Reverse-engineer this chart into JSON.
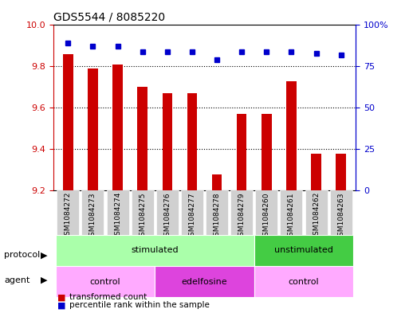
{
  "title": "GDS5544 / 8085220",
  "samples": [
    "GSM1084272",
    "GSM1084273",
    "GSM1084274",
    "GSM1084275",
    "GSM1084276",
    "GSM1084277",
    "GSM1084278",
    "GSM1084279",
    "GSM1084260",
    "GSM1084261",
    "GSM1084262",
    "GSM1084263"
  ],
  "transformed_count": [
    9.86,
    9.79,
    9.81,
    9.7,
    9.67,
    9.67,
    9.28,
    9.57,
    9.57,
    9.73,
    9.38,
    9.38
  ],
  "percentile_rank": [
    89,
    87,
    87,
    84,
    84,
    84,
    79,
    84,
    84,
    84,
    83,
    82
  ],
  "ylim_left": [
    9.2,
    10.0
  ],
  "ylim_right": [
    0,
    100
  ],
  "yticks_left": [
    9.2,
    9.4,
    9.6,
    9.8,
    10.0
  ],
  "yticks_right": [
    0,
    25,
    50,
    75,
    100
  ],
  "protocol_groups": [
    {
      "label": "stimulated",
      "start": 0,
      "end": 8,
      "color": "#aaffaa"
    },
    {
      "label": "unstimulated",
      "start": 8,
      "end": 12,
      "color": "#44cc44"
    }
  ],
  "agent_groups": [
    {
      "label": "control",
      "start": 0,
      "end": 4,
      "color": "#ffaaff"
    },
    {
      "label": "edelfosine",
      "start": 4,
      "end": 8,
      "color": "#dd44dd"
    },
    {
      "label": "control",
      "start": 8,
      "end": 12,
      "color": "#ffaaff"
    }
  ],
  "bar_color": "#cc0000",
  "dot_color": "#0000cc",
  "background_color": "#ffffff",
  "plot_bg_color": "#ffffff",
  "grid_color": "#000000",
  "left_label_color": "#cc0000",
  "right_label_color": "#0000cc"
}
